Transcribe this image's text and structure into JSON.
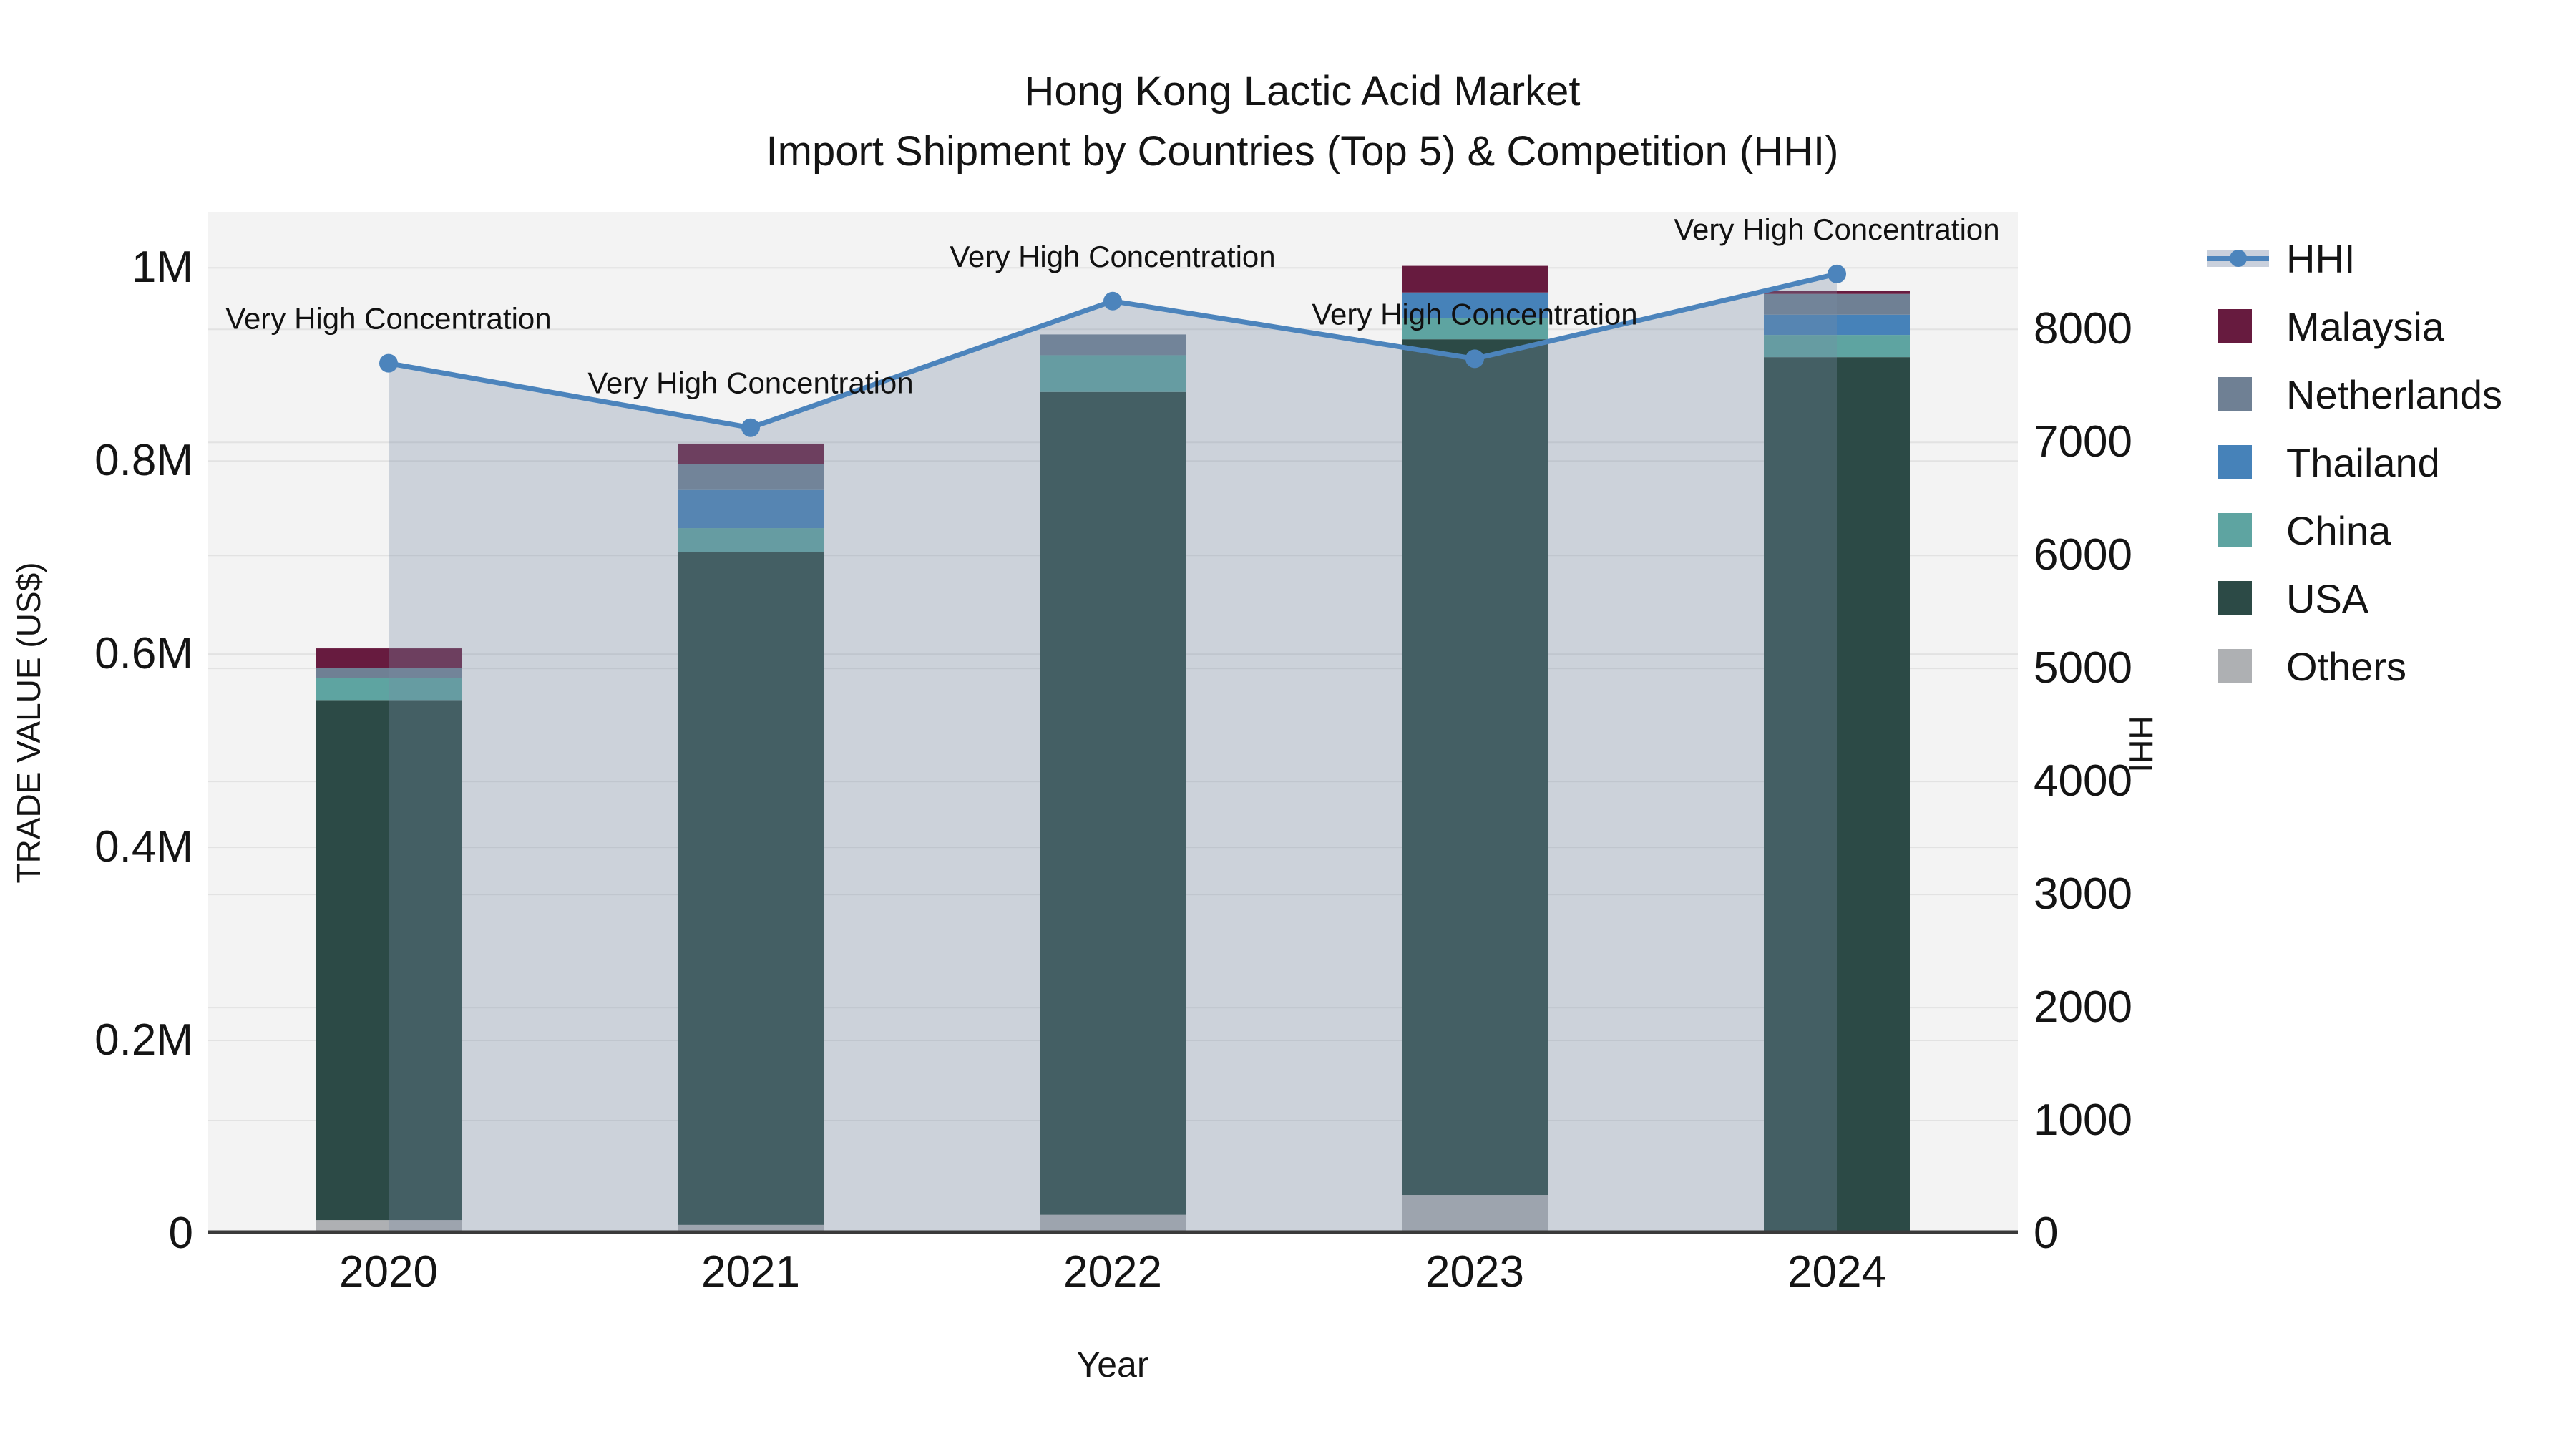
{
  "title": {
    "line1": "Hong Kong Lactic Acid Market",
    "line2": "Import Shipment by Countries (Top 5) & Competition (HHI)"
  },
  "chart_data": {
    "type": "combo_stacked_bar_line",
    "categories": [
      "2020",
      "2021",
      "2022",
      "2023",
      "2024"
    ],
    "xlabel": "Year",
    "ylabel_left": "TRADE VALUE (US$)",
    "ylabel_right": "HHI",
    "left_axis": {
      "ticks": [
        {
          "label": "0",
          "value": 0
        },
        {
          "label": "0.2M",
          "value": 200000
        },
        {
          "label": "0.4M",
          "value": 400000
        },
        {
          "label": "0.6M",
          "value": 600000
        },
        {
          "label": "0.8M",
          "value": 800000
        },
        {
          "label": "1M",
          "value": 1000000
        }
      ],
      "max": 1058000
    },
    "right_axis": {
      "ticks": [
        {
          "label": "0",
          "value": 0
        },
        {
          "label": "1000",
          "value": 1000
        },
        {
          "label": "2000",
          "value": 2000
        },
        {
          "label": "3000",
          "value": 3000
        },
        {
          "label": "4000",
          "value": 4000
        },
        {
          "label": "5000",
          "value": 5000
        },
        {
          "label": "6000",
          "value": 6000
        },
        {
          "label": "7000",
          "value": 7000
        },
        {
          "label": "8000",
          "value": 8000
        }
      ],
      "max": 9040
    },
    "series": [
      {
        "name": "Malaysia",
        "color": "#671B3F",
        "values": [
          20000,
          21500,
          0,
          27500,
          3000
        ]
      },
      {
        "name": "Netherlands",
        "color": "#6F8094",
        "values": [
          10500,
          26500,
          21500,
          0,
          21500
        ]
      },
      {
        "name": "Thailand",
        "color": "#4682B9",
        "values": [
          0,
          39500,
          0,
          26500,
          21000
        ]
      },
      {
        "name": "China",
        "color": "#5EA4A1",
        "values": [
          23000,
          25000,
          38000,
          22000,
          23000
        ]
      },
      {
        "name": "USA",
        "color": "#2C4A46",
        "values": [
          538500,
          696500,
          852000,
          886000,
          907500
        ]
      },
      {
        "name": "Others",
        "color": "#AEB0B3",
        "values": [
          14000,
          9000,
          19500,
          40000,
          0
        ]
      }
    ],
    "stack_order_bottom_to_top": [
      "Others",
      "USA",
      "China",
      "Thailand",
      "Netherlands",
      "Malaysia"
    ],
    "line": {
      "name": "HHI",
      "color": "#4C84BC",
      "area_fill": "rgba(120,140,165,0.32)",
      "values": [
        7700,
        7130,
        8250,
        7740,
        8490
      ]
    },
    "annotations": [
      "Very High Concentration",
      "Very High Concentration",
      "Very High Concentration",
      "Very High Concentration",
      "Very High Concentration"
    ],
    "plot_bg": "#F3F3F3",
    "grid_color": "#E2E2E2",
    "axis_line_color": "#3A3A3A",
    "annotation_color": "#111111"
  },
  "legend": {
    "items": [
      {
        "label": "HHI",
        "type": "line"
      },
      {
        "label": "Malaysia",
        "type": "swatch"
      },
      {
        "label": "Netherlands",
        "type": "swatch"
      },
      {
        "label": "Thailand",
        "type": "swatch"
      },
      {
        "label": "China",
        "type": "swatch"
      },
      {
        "label": "USA",
        "type": "swatch"
      },
      {
        "label": "Others",
        "type": "swatch"
      }
    ]
  }
}
